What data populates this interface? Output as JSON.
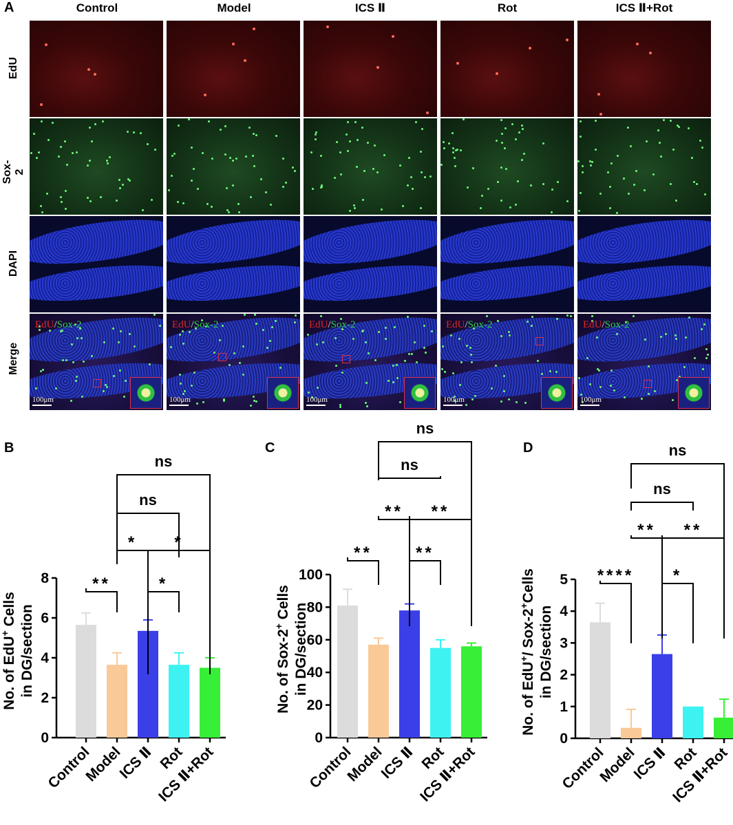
{
  "panel_letters": {
    "a": "A",
    "b": "B",
    "c": "C",
    "d": "D"
  },
  "columns": [
    "Control",
    "Model",
    "ICS Ⅱ",
    "Rot",
    "ICS Ⅱ+Rot"
  ],
  "rows": [
    "EdU",
    "Sox-2",
    "DAPI",
    "Merge"
  ],
  "merge_label": {
    "edu": "EdU",
    "slash": "/",
    "sox": "Sox-2"
  },
  "scale_bar": "100μm",
  "colors": {
    "control": "#dcdcdc",
    "model": "#f9c998",
    "icsii": "#3b3fe8",
    "rot": "#3ef2f2",
    "icsii_rot": "#36ef36"
  },
  "chart_data": [
    {
      "type": "bar",
      "panel": "B",
      "categories": [
        "Control",
        "Model",
        "ICS Ⅱ",
        "Rot",
        "ICS Ⅱ+Rot"
      ],
      "values": [
        5.65,
        3.65,
        5.35,
        3.65,
        3.5
      ],
      "errors": [
        0.6,
        0.6,
        0.55,
        0.6,
        0.5
      ],
      "ylabel_line1": "No. of EdU",
      "ylabel_sup": "+",
      "ylabel_line1_end": " Cells",
      "ylabel_line2": "in DG/section",
      "ylim": [
        0,
        8
      ],
      "yticks": [
        "0",
        "2",
        "4",
        "6",
        "8"
      ],
      "comparisons": [
        {
          "a": 0,
          "b": 1,
          "label": "**",
          "tier": 0
        },
        {
          "a": 2,
          "b": 3,
          "label": "*",
          "tier": 0
        },
        {
          "a": 1,
          "b": 2,
          "label": "*",
          "tier": 1
        },
        {
          "a": 2,
          "b": 4,
          "label": "*",
          "tier": 1
        },
        {
          "a": 1,
          "b": 3,
          "label": "ns",
          "tier": 2
        },
        {
          "a": 1,
          "b": 4,
          "label": "ns",
          "tier": 3
        }
      ]
    },
    {
      "type": "bar",
      "panel": "C",
      "categories": [
        "Control",
        "Model",
        "ICS Ⅱ",
        "Rot",
        "ICS Ⅱ+Rot"
      ],
      "values": [
        81,
        57,
        78,
        55,
        56
      ],
      "errors": [
        10,
        4,
        4,
        5,
        2
      ],
      "ylabel_line1": "No. of Sox-2",
      "ylabel_sup": "+",
      "ylabel_line1_end": " Cells",
      "ylabel_line2": "in DG/section",
      "ylim": [
        0,
        100
      ],
      "yticks": [
        "0",
        "20",
        "40",
        "60",
        "80",
        "100"
      ],
      "comparisons": [
        {
          "a": 0,
          "b": 1,
          "label": "**",
          "tier": 0
        },
        {
          "a": 2,
          "b": 3,
          "label": "**",
          "tier": 0
        },
        {
          "a": 1,
          "b": 2,
          "label": "**",
          "tier": 1
        },
        {
          "a": 2,
          "b": 4,
          "label": "**",
          "tier": 1
        },
        {
          "a": 1,
          "b": 3,
          "label": "ns",
          "tier": 2
        },
        {
          "a": 1,
          "b": 4,
          "label": "ns",
          "tier": 3
        }
      ]
    },
    {
      "type": "bar",
      "panel": "D",
      "categories": [
        "Control",
        "Model",
        "ICS Ⅱ",
        "Rot",
        "ICS Ⅱ+Rot"
      ],
      "values": [
        3.65,
        0.33,
        2.65,
        1.0,
        0.65
      ],
      "errors": [
        0.6,
        0.58,
        0.6,
        0,
        0.58
      ],
      "ylabel_line1": "No. of EdU",
      "ylabel_sup": "+",
      "ylabel_line1_end": "/ Sox-2",
      "ylabel_sup2": "+",
      "ylabel_line1_end2": "Cells",
      "ylabel_line2": "in DG/section",
      "ylim": [
        0,
        5
      ],
      "yticks": [
        "0",
        "1",
        "2",
        "3",
        "4",
        "5"
      ],
      "comparisons": [
        {
          "a": 0,
          "b": 1,
          "label": "****",
          "tier": 0
        },
        {
          "a": 2,
          "b": 3,
          "label": "*",
          "tier": 0
        },
        {
          "a": 1,
          "b": 2,
          "label": "**",
          "tier": 1
        },
        {
          "a": 2,
          "b": 4,
          "label": "**",
          "tier": 1
        },
        {
          "a": 1,
          "b": 3,
          "label": "ns",
          "tier": 2
        },
        {
          "a": 1,
          "b": 4,
          "label": "ns",
          "tier": 3
        }
      ]
    }
  ]
}
